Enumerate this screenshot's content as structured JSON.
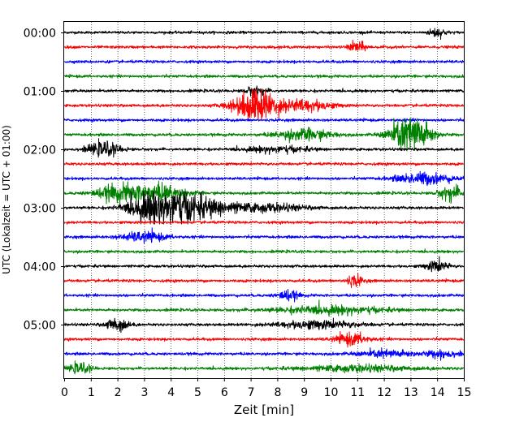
{
  "chart_data": {
    "type": "line",
    "chart_kind": "helicorder seismogram",
    "xlabel": "Zeit  [min]",
    "ylabel": "UTC (Lokalzeit = UTC + 01:00)",
    "xlim": [
      0,
      15
    ],
    "x_ticks": [
      0,
      1,
      2,
      3,
      4,
      5,
      6,
      7,
      8,
      9,
      10,
      11,
      12,
      13,
      14,
      15
    ],
    "y_tick_labels": [
      "00:00",
      "01:00",
      "02:00",
      "03:00",
      "04:00",
      "05:00"
    ],
    "grid": "vertical dotted lines at each minute",
    "row_interval_min": 15,
    "row_colors": [
      "#000000",
      "#ff0000",
      "#0000ff",
      "#008000"
    ],
    "base_amplitude": 0.07,
    "traces": [
      {
        "start": "00:00",
        "events": [
          [
            14,
            0.3,
            0.25
          ]
        ]
      },
      {
        "start": "00:15",
        "events": [
          [
            11,
            0.3,
            0.3
          ]
        ]
      },
      {
        "start": "00:30",
        "events": []
      },
      {
        "start": "00:45",
        "events": []
      },
      {
        "start": "01:00",
        "events": [
          [
            7.2,
            0.35,
            0.25
          ]
        ]
      },
      {
        "start": "01:15",
        "events": [
          [
            7.2,
            0.8,
            0.9
          ],
          [
            9,
            1,
            0.3
          ]
        ]
      },
      {
        "start": "01:30",
        "events": []
      },
      {
        "start": "01:45",
        "events": [
          [
            9,
            1,
            0.3
          ],
          [
            13,
            0.7,
            1.2
          ]
        ]
      },
      {
        "start": "02:00",
        "events": [
          [
            1.5,
            0.6,
            0.35
          ],
          [
            8,
            1.2,
            0.15
          ]
        ]
      },
      {
        "start": "02:15",
        "events": []
      },
      {
        "start": "02:30",
        "events": [
          [
            13.5,
            1,
            0.3
          ]
        ]
      },
      {
        "start": "02:45",
        "events": [
          [
            2,
            0.8,
            0.4
          ],
          [
            3.5,
            1,
            0.45
          ],
          [
            14.5,
            0.4,
            0.4
          ]
        ]
      },
      {
        "start": "03:00",
        "events": [
          [
            3.2,
            0.8,
            0.75
          ],
          [
            4.3,
            0.8,
            0.8
          ],
          [
            5.5,
            0.9,
            0.35
          ],
          [
            7.5,
            1.5,
            0.2
          ]
        ]
      },
      {
        "start": "03:15",
        "events": []
      },
      {
        "start": "03:30",
        "events": [
          [
            3,
            0.8,
            0.25
          ]
        ]
      },
      {
        "start": "03:45",
        "events": []
      },
      {
        "start": "04:00",
        "events": [
          [
            14,
            0.4,
            0.3
          ]
        ]
      },
      {
        "start": "04:15",
        "events": [
          [
            10.9,
            0.3,
            0.3
          ]
        ]
      },
      {
        "start": "04:30",
        "events": [
          [
            8.4,
            0.4,
            0.25
          ]
        ]
      },
      {
        "start": "04:45",
        "events": [
          [
            10,
            2,
            0.2
          ]
        ]
      },
      {
        "start": "05:00",
        "events": [
          [
            2,
            0.4,
            0.35
          ],
          [
            9.5,
            1.5,
            0.2
          ]
        ]
      },
      {
        "start": "05:15",
        "events": [
          [
            10.8,
            0.6,
            0.3
          ]
        ]
      },
      {
        "start": "05:30",
        "events": [
          [
            12.1,
            1,
            0.2
          ],
          [
            14.2,
            0.6,
            0.2
          ]
        ]
      },
      {
        "start": "05:45",
        "events": [
          [
            0.6,
            0.4,
            0.25
          ],
          [
            11,
            2,
            0.15
          ]
        ]
      }
    ]
  }
}
